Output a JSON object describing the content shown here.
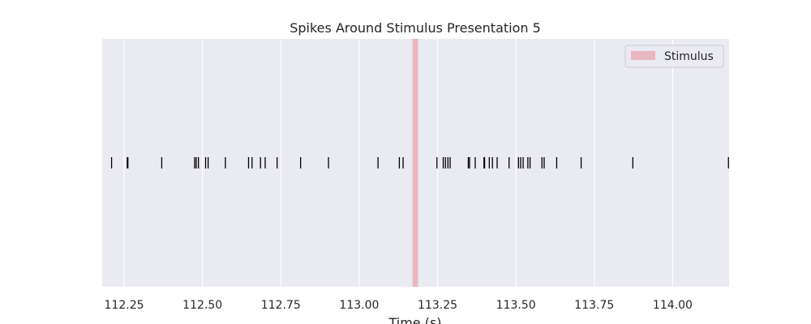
{
  "chart_data": {
    "type": "event_raster",
    "title": "Spikes Around Stimulus Presentation 5",
    "xlabel": "Time (s)",
    "ylabel": "",
    "xlim": [
      112.18,
      114.18
    ],
    "x_ticks": [
      112.25,
      112.5,
      112.75,
      113.0,
      113.25,
      113.5,
      113.75,
      114.0
    ],
    "x_tick_labels": [
      "112.25",
      "112.50",
      "112.75",
      "113.00",
      "113.25",
      "113.50",
      "113.75",
      "114.00"
    ],
    "y_ticks_visible": false,
    "grid": true,
    "background": "#eaeaf2",
    "spike_color": "#000000",
    "spike_times": [
      112.21,
      112.26,
      112.262,
      112.37,
      112.475,
      112.48,
      112.487,
      112.51,
      112.518,
      112.573,
      112.647,
      112.658,
      112.685,
      112.7,
      112.738,
      112.813,
      112.902,
      113.06,
      113.128,
      113.14,
      113.248,
      113.268,
      113.275,
      113.283,
      113.29,
      113.348,
      113.352,
      113.37,
      113.398,
      113.4,
      113.415,
      113.425,
      113.44,
      113.478,
      113.508,
      113.515,
      113.523,
      113.538,
      113.545,
      113.583,
      113.59,
      113.63,
      113.708,
      113.873,
      114.178
    ],
    "stimulus": {
      "start": 113.17,
      "end": 113.188,
      "label": "Stimulus",
      "color": "#e8838e"
    },
    "legend": {
      "position": "top-right",
      "entries": [
        "Stimulus"
      ]
    }
  }
}
